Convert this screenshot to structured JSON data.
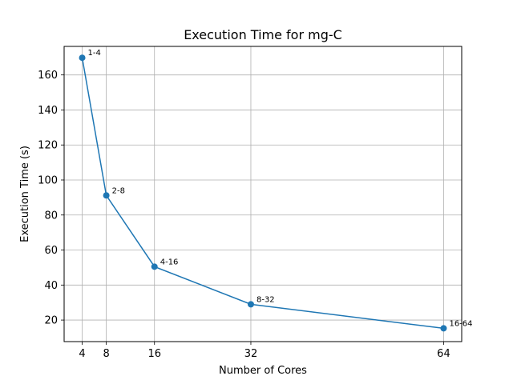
{
  "chart_data": {
    "type": "line",
    "title": "Execution Time for mg-C",
    "xlabel": "Number of Cores",
    "ylabel": "Execution Time (s)",
    "x": [
      4,
      8,
      16,
      32,
      64
    ],
    "xticks": [
      4,
      8,
      16,
      32,
      64
    ],
    "xlim": [
      1,
      67
    ],
    "yticks": [
      20,
      40,
      60,
      80,
      100,
      120,
      140,
      160
    ],
    "ylim": [
      7.7,
      176.3
    ],
    "grid": true,
    "series": [
      {
        "values": [
          169.8,
          91.2,
          50.5,
          29.0,
          15.3
        ],
        "point_labels": [
          "1-4",
          "2-8",
          "4-16",
          "8-32",
          "16-64"
        ],
        "color": "#1f77b4",
        "marker": "circle"
      }
    ]
  }
}
